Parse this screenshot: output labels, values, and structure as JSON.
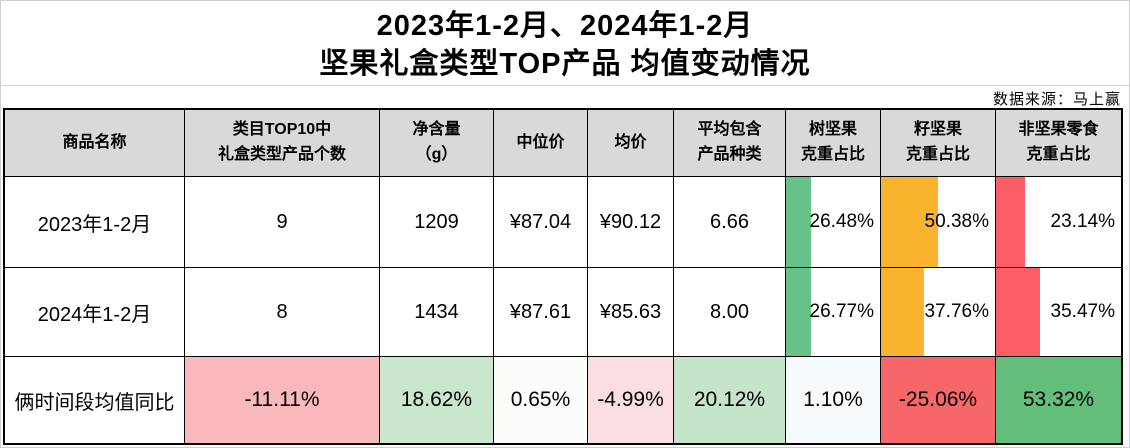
{
  "title": {
    "line1": "2023年1-2月、2024年1-2月",
    "line2": "坚果礼盒类型TOP产品 均值变动情况"
  },
  "source": "数据来源：马上赢",
  "colors": {
    "header_bg": "#D9D9D9",
    "bar_green": "#66C289",
    "bar_orange": "#FAB32C",
    "bar_red": "#F95F65",
    "summary_bg": [
      "#F9B8BC",
      "#C9E7CD",
      "#FBFDFB",
      "#FBDEE1",
      "#C5E5CA",
      "#F7FAFC",
      "#F7676A",
      "#63BE7B"
    ]
  },
  "table": {
    "headers": [
      "商品名称",
      "类目TOP10中\n礼盒类型产品个数",
      "净含量\n（g）",
      "中位价",
      "均价",
      "平均包含\n产品种类",
      "树坚果\n克重占比",
      "籽坚果\n克重占比",
      "非坚果零食\n克重占比"
    ],
    "rows": [
      {
        "label": "2023年1-2月",
        "values": [
          "9",
          "1209",
          "¥87.04",
          "¥90.12",
          "6.66"
        ],
        "bars": [
          {
            "value": "26.48%",
            "color": "#66C289"
          },
          {
            "value": "50.38%",
            "color": "#FAB32C"
          },
          {
            "value": "23.14%",
            "color": "#F95F65"
          }
        ]
      },
      {
        "label": "2024年1-2月",
        "values": [
          "8",
          "1434",
          "¥87.61",
          "¥85.63",
          "8.00"
        ],
        "bars": [
          {
            "value": "26.77%",
            "color": "#66C289"
          },
          {
            "value": "37.76%",
            "color": "#FAB32C"
          },
          {
            "value": "35.47%",
            "color": "#F95F65"
          }
        ]
      }
    ],
    "summary": {
      "label": "俩时间段均值同比",
      "values": [
        "-11.11%",
        "18.62%",
        "0.65%",
        "-4.99%",
        "20.12%",
        "1.10%",
        "-25.06%",
        "53.32%"
      ]
    }
  },
  "chart_data": {
    "type": "table",
    "title": "2023年1-2月、2024年1-2月 坚果礼盒类型TOP产品 均值变动情况",
    "source": "数据来源：马上赢",
    "columns": [
      "商品名称",
      "类目TOP10中礼盒类型产品个数",
      "净含量（g）",
      "中位价",
      "均价",
      "平均包含产品种类",
      "树坚果克重占比",
      "籽坚果克重占比",
      "非坚果零食克重占比"
    ],
    "rows": [
      [
        "2023年1-2月",
        9,
        1209,
        87.04,
        90.12,
        6.66,
        26.48,
        50.38,
        23.14
      ],
      [
        "2024年1-2月",
        8,
        1434,
        87.61,
        85.63,
        8.0,
        26.77,
        37.76,
        35.47
      ],
      [
        "俩时间段均值同比",
        -11.11,
        18.62,
        0.65,
        -4.99,
        20.12,
        1.1,
        -25.06,
        53.32
      ]
    ],
    "conditional_formatting": {
      "data_bars": {
        "columns": [
          "树坚果克重占比",
          "籽坚果克重占比",
          "非坚果零食克重占比"
        ],
        "scale_max_percent": 100
      },
      "color_scale_row": "俩时间段均值同比"
    }
  }
}
